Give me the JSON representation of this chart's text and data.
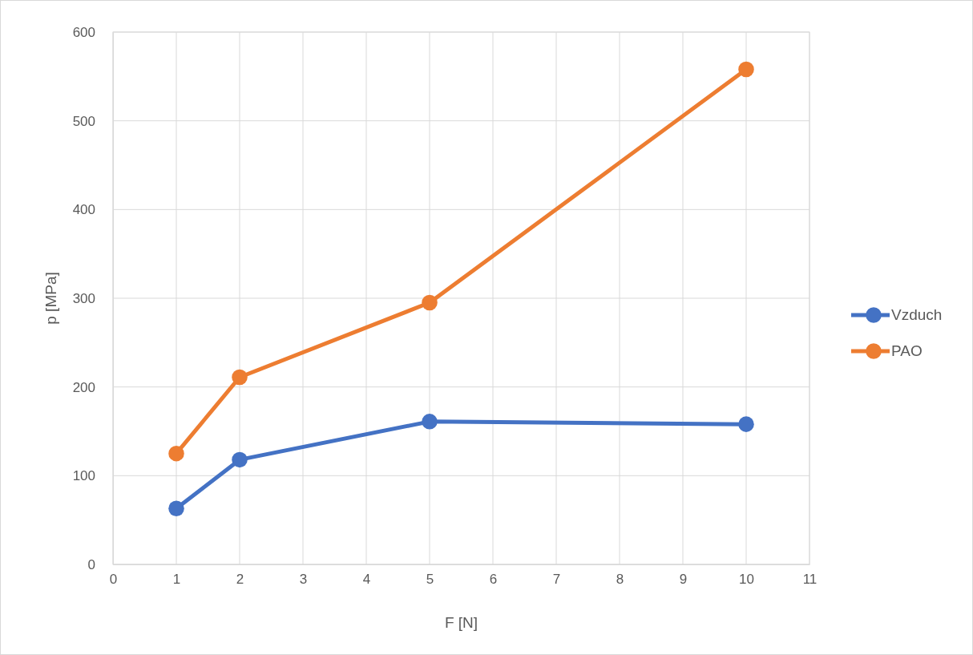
{
  "chart_data": {
    "type": "line",
    "xlabel": "F [N]",
    "ylabel": "p [MPa]",
    "x": [
      1,
      2,
      5,
      10
    ],
    "series": [
      {
        "name": "Vzduch",
        "color": "#4472c4",
        "values": [
          63,
          118,
          161,
          158
        ]
      },
      {
        "name": "PAO",
        "color": "#ed7d31",
        "values": [
          125,
          211,
          295,
          558
        ]
      }
    ],
    "xlim": [
      0,
      11
    ],
    "xticks": [
      0,
      1,
      2,
      3,
      4,
      5,
      6,
      7,
      8,
      9,
      10,
      11
    ],
    "ylim": [
      0,
      600
    ],
    "yticks": [
      0,
      100,
      200,
      300,
      400,
      500,
      600
    ],
    "grid": true,
    "legend": "right",
    "marker": "circle",
    "line_style": "solid"
  }
}
